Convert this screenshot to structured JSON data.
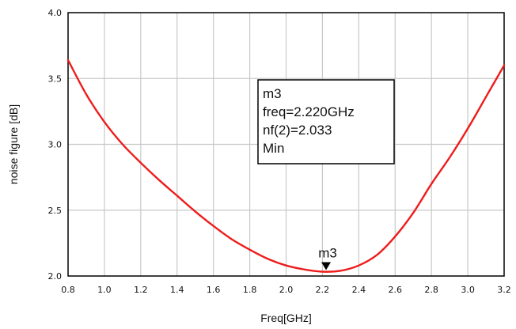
{
  "chart_data": {
    "type": "line",
    "title": "",
    "xlabel": "Freq[GHz]",
    "ylabel": "noise figure [dB]",
    "xlim": [
      0.8,
      3.2
    ],
    "ylim": [
      2.0,
      4.0
    ],
    "x_ticks": [
      "0.8",
      "1.0",
      "1.2",
      "1.4",
      "1.6",
      "1.8",
      "2.0",
      "2.2",
      "2.4",
      "2.6",
      "2.8",
      "3.0",
      "3.2"
    ],
    "y_ticks": [
      "2.0",
      "2.5",
      "3.0",
      "3.5",
      "4.0"
    ],
    "grid": true,
    "series": [
      {
        "color": "#ee1c1c",
        "x": [
          0.8,
          0.9,
          1.0,
          1.1,
          1.2,
          1.3,
          1.4,
          1.5,
          1.6,
          1.7,
          1.8,
          1.9,
          2.0,
          2.1,
          2.2,
          2.3,
          2.4,
          2.5,
          2.6,
          2.7,
          2.8,
          2.9,
          3.0,
          3.1,
          3.2
        ],
        "y": [
          3.64,
          3.38,
          3.17,
          3.0,
          2.86,
          2.73,
          2.61,
          2.49,
          2.38,
          2.28,
          2.2,
          2.13,
          2.08,
          2.05,
          2.033,
          2.04,
          2.08,
          2.16,
          2.3,
          2.48,
          2.7,
          2.9,
          3.12,
          3.36,
          3.6
        ]
      }
    ],
    "marker": {
      "name": "m3",
      "x": 2.22,
      "y": 2.033,
      "lines": [
        "m3",
        "freq=2.220GHz",
        "nf(2)=2.033",
        "Min"
      ]
    }
  }
}
